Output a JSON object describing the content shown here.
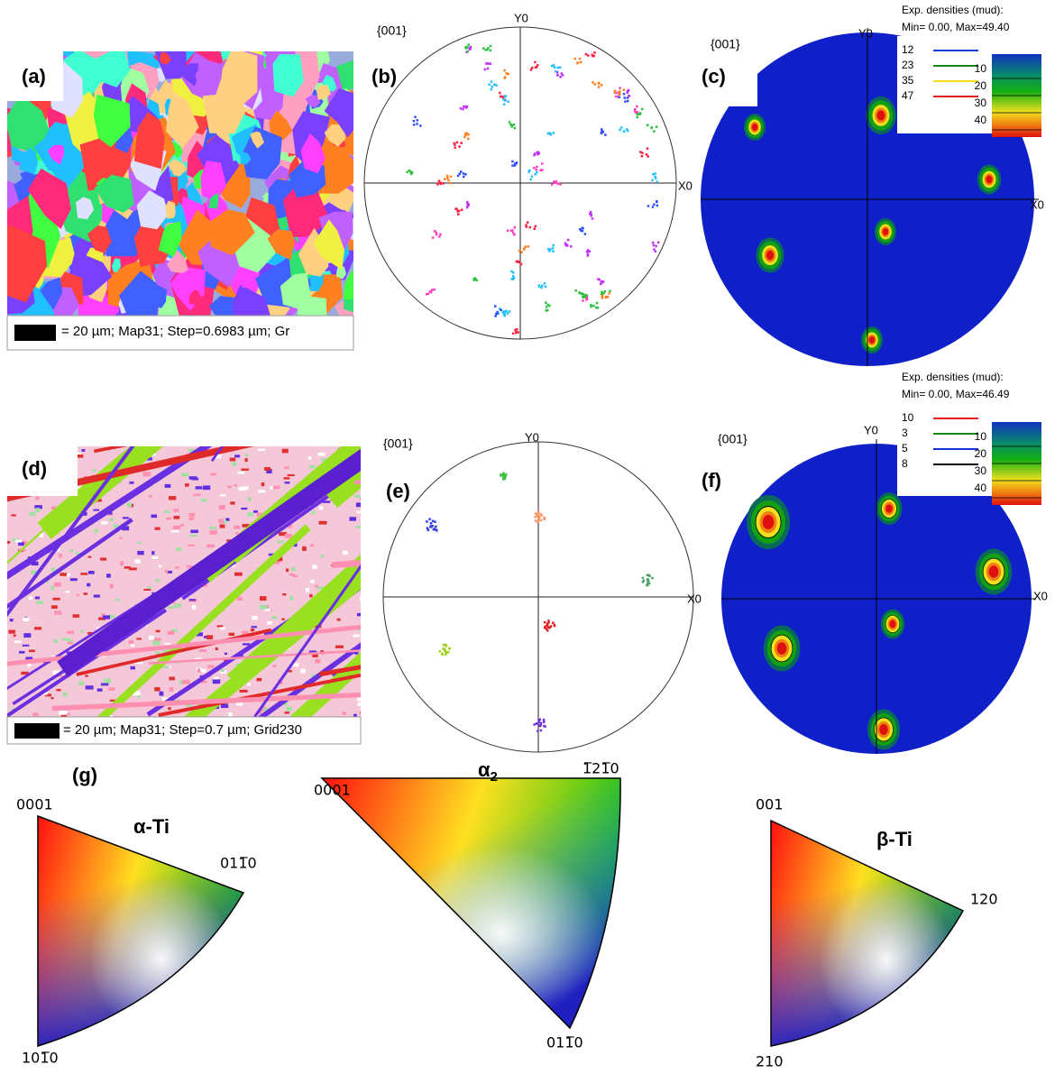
{
  "panel_a": {
    "label": "(a)",
    "scale_bar": "= 20 µm; Map31; Step=0.6983 µm; Gr"
  },
  "panel_b": {
    "label": "(b)",
    "projection": "{001}",
    "y_axis": "Y0",
    "x_axis": "X0"
  },
  "panel_c": {
    "label": "(c)",
    "projection": "{001}",
    "y_axis": "Y0",
    "x_axis": "X0",
    "density_title": "Exp. densities (mud):",
    "density_range": "Min= 0.00, Max=49.40",
    "legend": [
      {
        "label": "12",
        "color": "#1a3fd6"
      },
      {
        "label": "23",
        "color": "#118a11"
      },
      {
        "label": "35",
        "color": "#f2e01a"
      },
      {
        "label": "47",
        "color": "#e01e1e"
      }
    ],
    "colorbar_ticks": [
      "10",
      "20",
      "30",
      "40"
    ]
  },
  "panel_d": {
    "label": "(d)",
    "scale_bar": "= 20 µm; Map31; Step=0.7 µm; Grid230"
  },
  "panel_e": {
    "label": "(e)",
    "projection": "{001}",
    "y_axis": "Y0",
    "x_axis": "X0"
  },
  "panel_f": {
    "label": "(f)",
    "projection": "{001}",
    "y_axis": "Y0",
    "x_axis": "X0",
    "density_title": "Exp. densities (mud):",
    "density_range": "Min= 0.00, Max=46.49",
    "legend": [
      {
        "label": "10",
        "color": "#e01e1e"
      },
      {
        "label": "3",
        "color": "#118a11"
      },
      {
        "label": "5",
        "color": "#1a2fd6"
      },
      {
        "label": "8",
        "color": "#000000"
      }
    ],
    "colorbar_ticks": [
      "10",
      "20",
      "30",
      "40"
    ]
  },
  "panel_g": {
    "label": "(g)",
    "keys": [
      {
        "title": "α-Ti",
        "corners": [
          "0001",
          "011̅0",
          "101̅0"
        ]
      },
      {
        "title": "α",
        "subscript": "2",
        "corners": [
          "0001",
          "1̅21̅0",
          "011̅0"
        ]
      },
      {
        "title": "β-Ti",
        "corners": [
          "001",
          "120",
          "210"
        ]
      }
    ]
  }
}
